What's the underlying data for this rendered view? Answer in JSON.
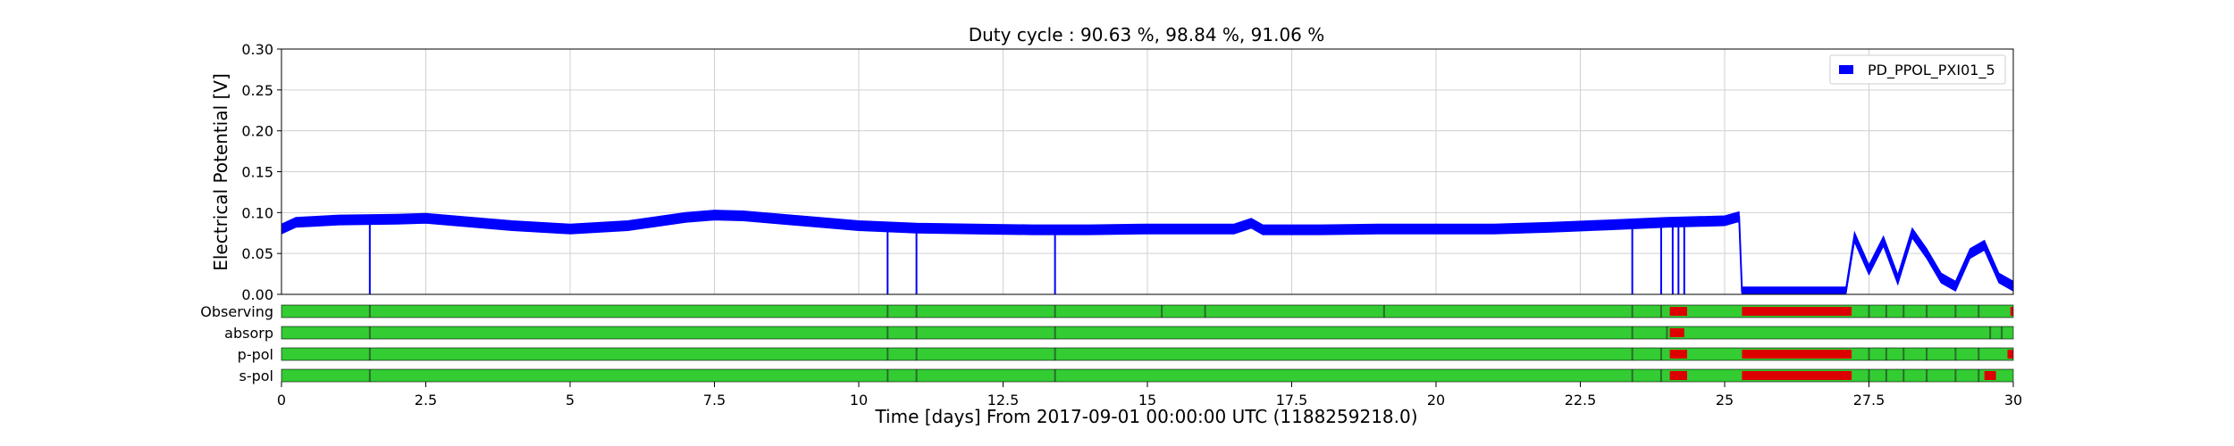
{
  "chart_data": {
    "type": "line",
    "title": "Duty cycle : 90.63 %, 98.84 %, 91.06 %",
    "xlabel": "Time [days] From 2017-09-01 00:00:00 UTC (1188259218.0)",
    "ylabel": "Electrical Potential [V]",
    "xlim": [
      0,
      30
    ],
    "ylim": [
      0,
      0.3
    ],
    "x_ticks": [
      "0",
      "2.5",
      "5",
      "7.5",
      "10",
      "12.5",
      "15",
      "17.5",
      "20",
      "22.5",
      "25",
      "27.5",
      "30"
    ],
    "y_ticks": [
      "0.00",
      "0.05",
      "0.10",
      "0.15",
      "0.20",
      "0.25",
      "0.30"
    ],
    "grid": true,
    "legend_position": "top-right",
    "series": [
      {
        "name": "PD_PPOL_PXI01_5",
        "color": "#0000ff",
        "x": [
          0,
          0.25,
          1,
          2,
          2.5,
          3,
          4,
          5,
          6,
          7,
          7.5,
          8,
          9,
          10,
          11,
          12,
          13,
          14,
          15,
          16,
          16.5,
          16.8,
          17,
          18,
          19,
          20,
          21,
          22,
          23,
          24,
          25,
          25.25,
          25.3,
          27.1,
          27.25,
          27.5,
          27.75,
          28,
          28.25,
          28.5,
          28.75,
          29,
          29.25,
          29.5,
          29.75,
          30
        ],
        "y": [
          0.08,
          0.088,
          0.091,
          0.092,
          0.093,
          0.09,
          0.084,
          0.08,
          0.084,
          0.094,
          0.097,
          0.096,
          0.09,
          0.084,
          0.081,
          0.08,
          0.079,
          0.079,
          0.08,
          0.08,
          0.08,
          0.087,
          0.079,
          0.079,
          0.08,
          0.08,
          0.08,
          0.082,
          0.085,
          0.088,
          0.09,
          0.095,
          0.003,
          0.003,
          0.07,
          0.03,
          0.065,
          0.018,
          0.075,
          0.05,
          0.02,
          0.01,
          0.05,
          0.06,
          0.02,
          0.01
        ],
        "band_halfwidth": 0.006,
        "dropouts": [
          1.53,
          10.5,
          11.0,
          13.4,
          23.4,
          23.9,
          24.1,
          24.2,
          24.3
        ]
      }
    ],
    "segments": {
      "colors": {
        "on": "#33cc33",
        "off": "#dd0000",
        "mark": "#2a6e2a"
      },
      "rows": [
        {
          "label": "Observing",
          "off": [
            [
              24.05,
              24.35
            ],
            [
              25.3,
              27.2
            ],
            [
              29.95,
              30
            ]
          ],
          "marks": [
            1.53,
            10.5,
            11.0,
            13.4,
            15.25,
            16.0,
            19.1,
            23.4,
            23.9,
            27.5,
            27.8,
            28.1,
            28.5,
            29.0,
            29.4
          ]
        },
        {
          "label": "absorp",
          "off": [
            [
              24.05,
              24.3
            ]
          ],
          "marks": [
            1.53,
            10.5,
            11.0,
            13.4,
            23.4,
            24.0,
            29.6,
            29.8
          ]
        },
        {
          "label": "p-pol",
          "off": [
            [
              24.05,
              24.35
            ],
            [
              25.3,
              27.2
            ],
            [
              29.9,
              30
            ]
          ],
          "marks": [
            1.53,
            10.5,
            11.0,
            13.4,
            23.4,
            23.9,
            27.5,
            27.8,
            28.1,
            28.5,
            29.0,
            29.4
          ]
        },
        {
          "label": "s-pol",
          "off": [
            [
              24.05,
              24.35
            ],
            [
              25.3,
              27.2
            ],
            [
              29.5,
              29.7
            ]
          ],
          "marks": [
            1.53,
            10.5,
            11.0,
            13.4,
            23.4,
            23.9,
            27.5,
            27.8,
            28.1,
            28.5,
            29.0,
            29.4
          ]
        }
      ]
    }
  }
}
